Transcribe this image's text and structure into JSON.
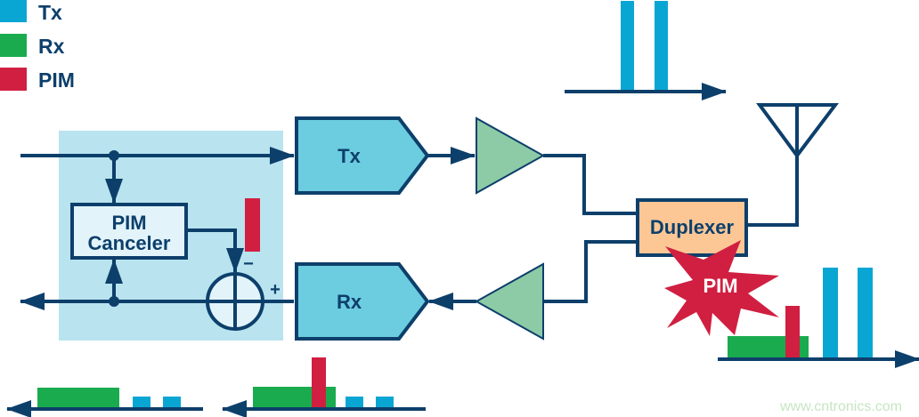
{
  "legend": [
    {
      "label": "Tx",
      "color": "#0aa6d3"
    },
    {
      "label": "Rx",
      "color": "#1aab4f"
    },
    {
      "label": "PIM",
      "color": "#d01f41"
    }
  ],
  "blocks": {
    "canceler_line1": "PIM",
    "canceler_line2": "Canceler",
    "tx": "Tx",
    "rx": "Rx",
    "duplexer": "Duplexer",
    "pim_burst": "PIM",
    "minus": "−",
    "plus": "+"
  },
  "watermark": "www.cntronics.com",
  "colors": {
    "line": "#0d3f6b",
    "canceler_area": "#b8e3ef",
    "block": "#6ccde0",
    "amp": "#8dcba6",
    "duplexer": "#fcc795"
  }
}
